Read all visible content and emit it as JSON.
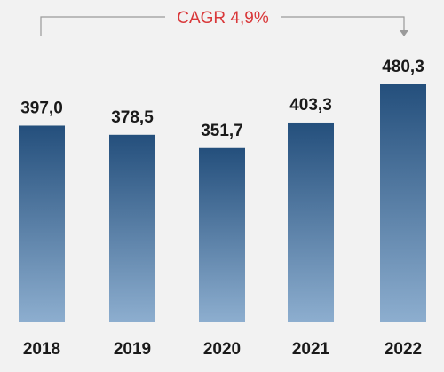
{
  "chart_data": {
    "type": "bar",
    "categories": [
      "2018",
      "2019",
      "2020",
      "2021",
      "2022"
    ],
    "values": [
      397.0,
      378.5,
      351.7,
      403.3,
      480.3
    ],
    "value_labels": [
      "397,0",
      "378,5",
      "351,7",
      "403,3",
      "480,3"
    ],
    "title": "",
    "xlabel": "",
    "ylabel": "",
    "ylim": [
      0,
      480.3
    ],
    "grid": false,
    "annotations": [
      {
        "text": "CAGR 4,9%",
        "from": "2018",
        "to": "2022",
        "color": "#d9383a"
      }
    ],
    "colors": {
      "bar_top": "#244f7c",
      "bar_bottom": "#8daecf",
      "bracket": "#9a9a9a",
      "label": "#1a1a1a"
    }
  }
}
